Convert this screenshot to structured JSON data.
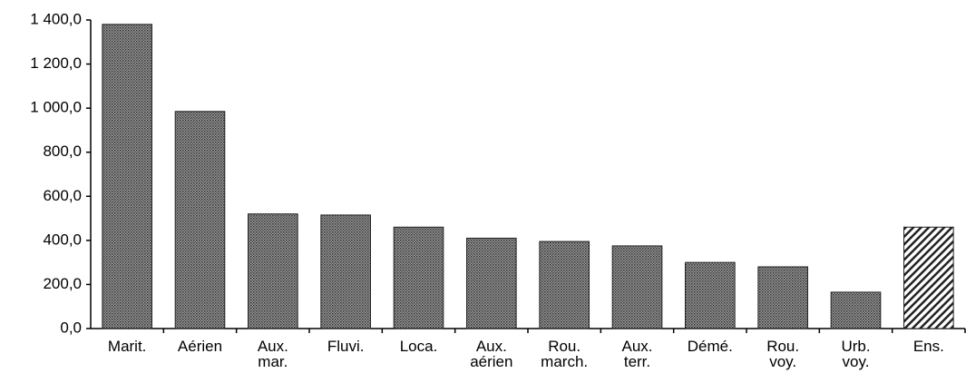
{
  "chart_data": {
    "type": "bar",
    "categories": [
      "Marit.",
      "Aérien",
      "Aux.\nmar.",
      "Fluvi.",
      "Loca.",
      "Aux.\naérien",
      "Rou.\nmarch.",
      "Aux.\nterr.",
      "Démé.",
      "Rou.\nvoy.",
      "Urb.\nvoy.",
      "Ens."
    ],
    "values": [
      1380,
      985,
      520,
      515,
      460,
      410,
      395,
      375,
      300,
      280,
      165,
      460
    ],
    "fills": [
      "dots",
      "dots",
      "dots",
      "dots",
      "dots",
      "dots",
      "dots",
      "dots",
      "dots",
      "dots",
      "dots",
      "hatch"
    ],
    "ylim": [
      0,
      1400
    ],
    "yticks": [
      {
        "value": 0,
        "label": "0,0"
      },
      {
        "value": 200,
        "label": "200,0"
      },
      {
        "value": 400,
        "label": "400,0"
      },
      {
        "value": 600,
        "label": "600,0"
      },
      {
        "value": 800,
        "label": "800,0"
      },
      {
        "value": 1000,
        "label": "1 000,0"
      },
      {
        "value": 1200,
        "label": "1 200,0"
      },
      {
        "value": 1400,
        "label": "1 400,0"
      }
    ]
  }
}
